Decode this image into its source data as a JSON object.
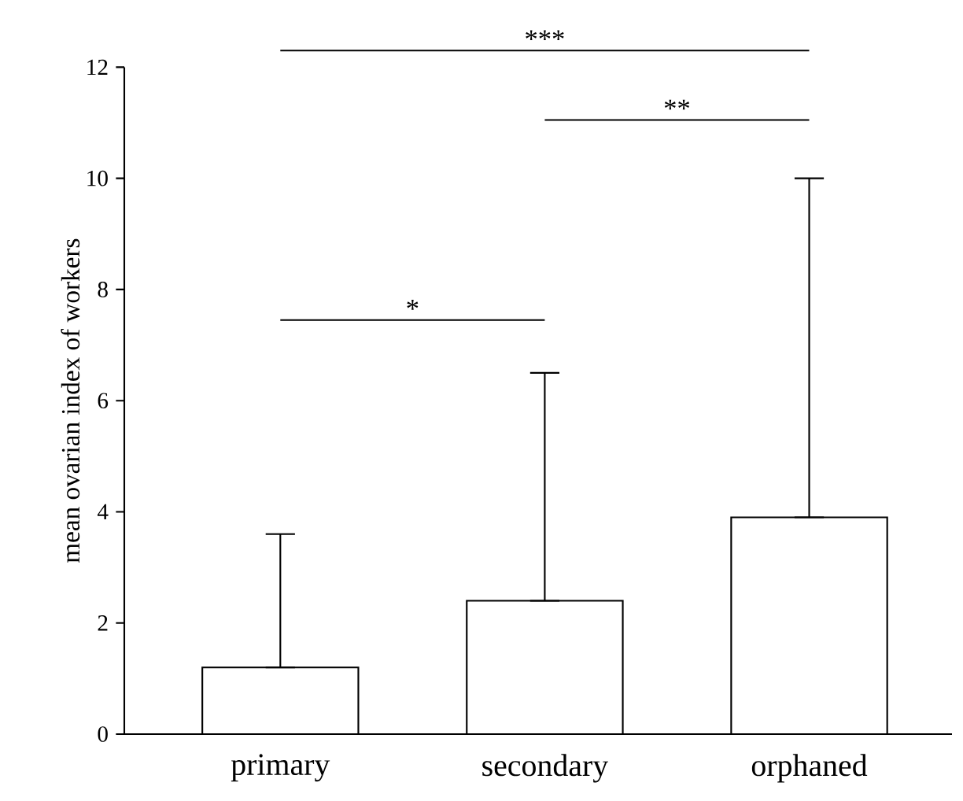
{
  "chart_data": {
    "type": "bar",
    "ylabel": "mean ovarian index of workers",
    "categories": [
      "primary",
      "secondary",
      "orphaned"
    ],
    "values": [
      1.2,
      2.4,
      3.9
    ],
    "color": "#ffffff",
    "errors": [
      [
        1.2,
        3.6
      ],
      [
        2.4,
        6.5
      ],
      [
        3.9,
        10.0
      ]
    ],
    "ylim": [
      0,
      12
    ],
    "yticks": [
      0,
      2,
      4,
      6,
      8,
      10,
      12
    ],
    "grid": false,
    "annotations": [
      "***",
      "**",
      "*"
    ]
  }
}
